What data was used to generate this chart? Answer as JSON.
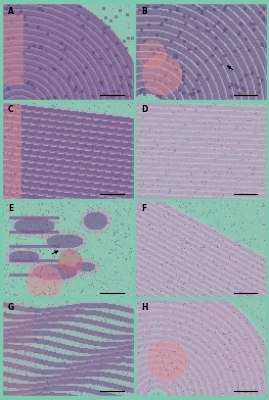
{
  "panels": [
    "A",
    "B",
    "C",
    "D",
    "E",
    "F",
    "G",
    "H"
  ],
  "grid_rows": 4,
  "grid_cols": 2,
  "background_color": "#7dc8b0",
  "label_color": "#000000",
  "label_fontsize": 5.5,
  "fig_width": 2.69,
  "fig_height": 4.0,
  "dpi": 100,
  "panel_bg": [
    142,
    196,
    178
  ],
  "lamellar_dark": [
    120,
    90,
    140
  ],
  "lamellar_mid": [
    190,
    150,
    185
  ],
  "lamellar_light": [
    210,
    185,
    210
  ],
  "pink_tissue": [
    220,
    140,
    150
  ],
  "cell_dark": [
    90,
    60,
    110
  ],
  "bg_green": [
    140,
    200,
    180
  ]
}
